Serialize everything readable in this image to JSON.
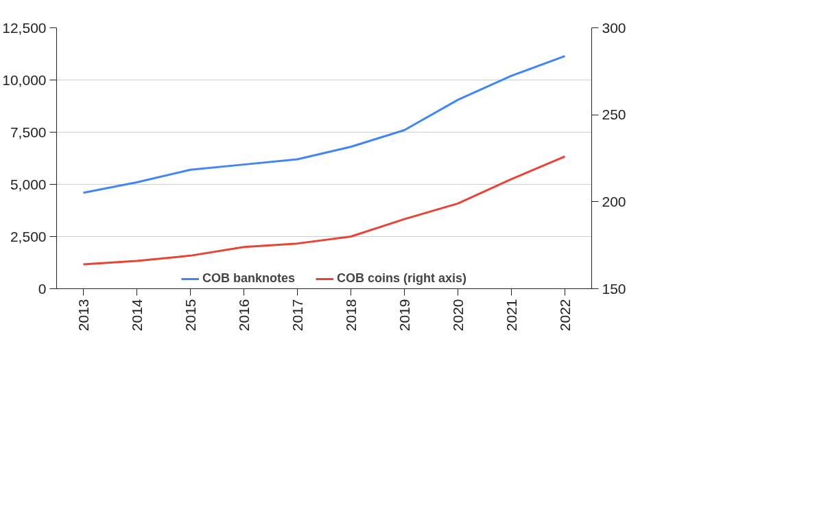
{
  "chart_data": {
    "type": "line",
    "categories": [
      "2013",
      "2014",
      "2015",
      "2016",
      "2017",
      "2018",
      "2019",
      "2020",
      "2021",
      "2022"
    ],
    "series": [
      {
        "name": "COB banknotes",
        "color": "#4285f4",
        "values": [
          4600,
          5100,
          5700,
          5950,
          6200,
          6800,
          7600,
          9050,
          10200,
          11150
        ]
      },
      {
        "name": "COB coins (right axis)",
        "color": "#ea4335",
        "axis": "y2",
        "values": [
          164,
          166,
          169,
          174,
          176,
          180,
          190,
          199,
          213,
          226
        ]
      }
    ],
    "ylim": [
      0,
      12500
    ],
    "yticks": [
      0,
      {
        "value": 2500,
        "label": "2,500"
      },
      {
        "value": 5000,
        "label": "5,000"
      },
      {
        "value": 7500,
        "label": "7,500"
      },
      {
        "value": 10000,
        "label": "10,000"
      },
      {
        "value": 12500,
        "label": "12,500"
      }
    ],
    "y2lim": [
      150,
      300
    ],
    "y2ticks": [
      150,
      200,
      250,
      300
    ],
    "grid": "y",
    "legend": "bottom",
    "marker": "none",
    "line_style": "solid"
  }
}
